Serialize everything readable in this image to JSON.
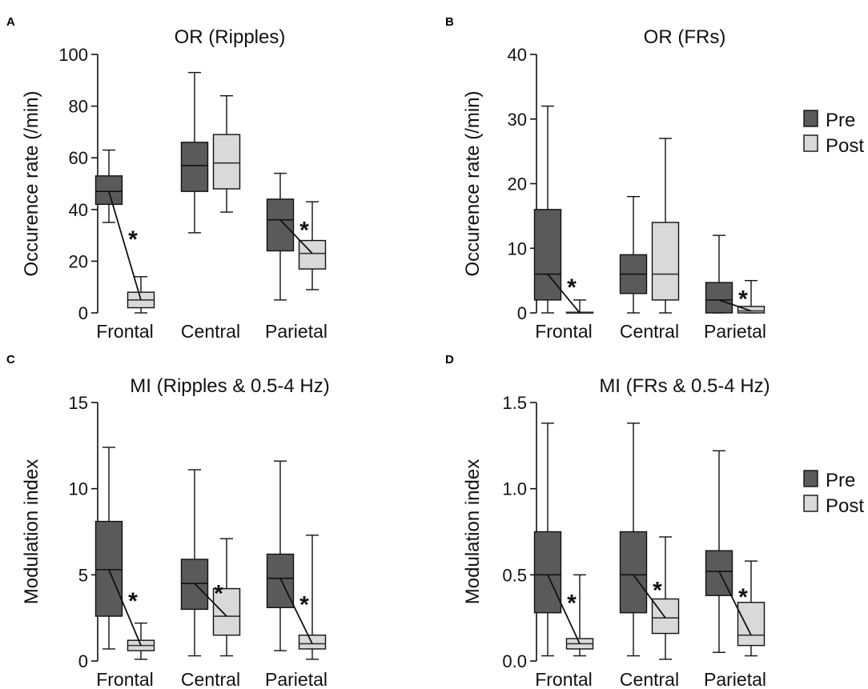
{
  "colors": {
    "pre": "#5a5a5a",
    "post": "#d9d9d9",
    "line": "#111111"
  },
  "legend": {
    "pre": "Pre",
    "post": "Post"
  },
  "chart_data": [
    {
      "id": "A",
      "type": "box",
      "panel_label": "A",
      "title": "OR (Ripples)",
      "ylabel": "Occurence rate (/min)",
      "ylim": [
        0,
        100
      ],
      "yticks": [
        0,
        20,
        40,
        60,
        80,
        100
      ],
      "ytick_labels": [
        "0",
        "20",
        "40",
        "60",
        "80",
        "100"
      ],
      "categories": [
        "Frontal",
        "Central",
        "Parietal"
      ],
      "legend": false,
      "series": [
        {
          "name": "Pre",
          "boxes": [
            {
              "whisker_low": 35,
              "q1": 42,
              "median": 47,
              "q3": 53,
              "whisker_high": 63
            },
            {
              "whisker_low": 31,
              "q1": 47,
              "median": 57,
              "q3": 66,
              "whisker_high": 93
            },
            {
              "whisker_low": 5,
              "q1": 24,
              "median": 36,
              "q3": 44,
              "whisker_high": 54
            }
          ]
        },
        {
          "name": "Post",
          "boxes": [
            {
              "whisker_low": 0,
              "q1": 2,
              "median": 5,
              "q3": 8,
              "whisker_high": 14
            },
            {
              "whisker_low": 39,
              "q1": 48,
              "median": 58,
              "q3": 69,
              "whisker_high": 84
            },
            {
              "whisker_low": 9,
              "q1": 17,
              "median": 23,
              "q3": 28,
              "whisker_high": 43
            }
          ]
        }
      ],
      "significance": [
        {
          "category": "Frontal",
          "label": "*"
        },
        {
          "category": "Parietal",
          "label": "*"
        }
      ]
    },
    {
      "id": "B",
      "type": "box",
      "panel_label": "B",
      "title": "OR (FRs)",
      "ylabel": "Occurence rate (/min)",
      "ylim": [
        0,
        40
      ],
      "yticks": [
        0,
        10,
        20,
        30,
        40
      ],
      "ytick_labels": [
        "0",
        "10",
        "20",
        "30",
        "40"
      ],
      "categories": [
        "Frontal",
        "Central",
        "Parietal"
      ],
      "legend": true,
      "series": [
        {
          "name": "Pre",
          "boxes": [
            {
              "whisker_low": 0,
              "q1": 2,
              "median": 6,
              "q3": 16,
              "whisker_high": 32
            },
            {
              "whisker_low": 0,
              "q1": 3,
              "median": 6,
              "q3": 9,
              "whisker_high": 18
            },
            {
              "whisker_low": 0,
              "q1": 0,
              "median": 2,
              "q3": 4.7,
              "whisker_high": 12
            }
          ]
        },
        {
          "name": "Post",
          "boxes": [
            {
              "whisker_low": 0,
              "q1": 0,
              "median": 0,
              "q3": 0.1,
              "whisker_high": 2
            },
            {
              "whisker_low": 0,
              "q1": 2,
              "median": 6,
              "q3": 14,
              "whisker_high": 27
            },
            {
              "whisker_low": 0,
              "q1": 0,
              "median": 0.3,
              "q3": 1,
              "whisker_high": 5
            }
          ]
        }
      ],
      "significance": [
        {
          "category": "Frontal",
          "label": "*"
        },
        {
          "category": "Parietal",
          "label": "*"
        }
      ]
    },
    {
      "id": "C",
      "type": "box",
      "panel_label": "C",
      "title": "MI (Ripples & 0.5-4 Hz)",
      "ylabel": "Modulation index",
      "ylim": [
        0,
        15
      ],
      "yticks": [
        0,
        5,
        10,
        15
      ],
      "ytick_labels": [
        "0",
        "5",
        "10",
        "15"
      ],
      "categories": [
        "Frontal",
        "Central",
        "Parietal"
      ],
      "legend": false,
      "series": [
        {
          "name": "Pre",
          "boxes": [
            {
              "whisker_low": 0.7,
              "q1": 2.6,
              "median": 5.3,
              "q3": 8.1,
              "whisker_high": 12.4
            },
            {
              "whisker_low": 0.3,
              "q1": 3.0,
              "median": 4.5,
              "q3": 5.9,
              "whisker_high": 11.1
            },
            {
              "whisker_low": 0.6,
              "q1": 3.1,
              "median": 4.8,
              "q3": 6.2,
              "whisker_high": 11.6
            }
          ]
        },
        {
          "name": "Post",
          "boxes": [
            {
              "whisker_low": 0.1,
              "q1": 0.6,
              "median": 0.9,
              "q3": 1.2,
              "whisker_high": 2.2
            },
            {
              "whisker_low": 0.3,
              "q1": 1.5,
              "median": 2.6,
              "q3": 4.2,
              "whisker_high": 7.1
            },
            {
              "whisker_low": 0.1,
              "q1": 0.7,
              "median": 1.0,
              "q3": 1.5,
              "whisker_high": 7.3
            }
          ]
        }
      ],
      "significance": [
        {
          "category": "Frontal",
          "label": "*"
        },
        {
          "category": "Central",
          "label": "*"
        },
        {
          "category": "Parietal",
          "label": "*"
        }
      ]
    },
    {
      "id": "D",
      "type": "box",
      "panel_label": "D",
      "title": "MI (FRs & 0.5-4 Hz)",
      "ylabel": "Modulation index",
      "ylim": [
        0,
        1.5
      ],
      "yticks": [
        0,
        0.5,
        1.0,
        1.5
      ],
      "ytick_labels": [
        "0.0",
        "0.5",
        "1.0",
        "1.5"
      ],
      "categories": [
        "Frontal",
        "Central",
        "Parietal"
      ],
      "legend": true,
      "series": [
        {
          "name": "Pre",
          "boxes": [
            {
              "whisker_low": 0.03,
              "q1": 0.28,
              "median": 0.5,
              "q3": 0.75,
              "whisker_high": 1.38
            },
            {
              "whisker_low": 0.03,
              "q1": 0.28,
              "median": 0.5,
              "q3": 0.75,
              "whisker_high": 1.38
            },
            {
              "whisker_low": 0.05,
              "q1": 0.38,
              "median": 0.52,
              "q3": 0.64,
              "whisker_high": 1.22
            }
          ]
        },
        {
          "name": "Post",
          "boxes": [
            {
              "whisker_low": 0.03,
              "q1": 0.07,
              "median": 0.1,
              "q3": 0.13,
              "whisker_high": 0.5
            },
            {
              "whisker_low": 0.01,
              "q1": 0.16,
              "median": 0.25,
              "q3": 0.36,
              "whisker_high": 0.72
            },
            {
              "whisker_low": 0.03,
              "q1": 0.09,
              "median": 0.15,
              "q3": 0.34,
              "whisker_high": 0.58
            }
          ]
        }
      ],
      "significance": [
        {
          "category": "Frontal",
          "label": "*"
        },
        {
          "category": "Central",
          "label": "*"
        },
        {
          "category": "Parietal",
          "label": "*"
        }
      ]
    }
  ]
}
